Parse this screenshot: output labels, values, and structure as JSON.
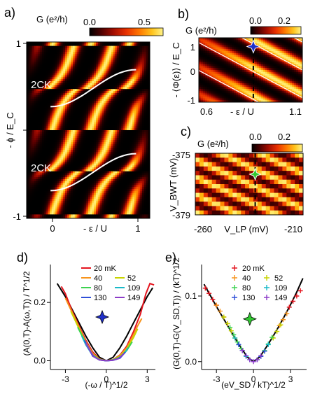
{
  "colors": {
    "cmap": [
      "#000000",
      "#2a0000",
      "#6e0000",
      "#b81000",
      "#ee3a00",
      "#ff7a00",
      "#ffbe10",
      "#fff07a"
    ],
    "series": [
      "#e4141e",
      "#f7941d",
      "#c8d400",
      "#3cd250",
      "#19b9c8",
      "#2f4fd8",
      "#8c3cc8",
      "#e632c8"
    ],
    "star_blue": "#2030c8",
    "star_green": "#32c832"
  },
  "icons": {
    "marker": "four-point-star-icon"
  },
  "chart_data": [
    {
      "panel": "a)",
      "type": "heatmap",
      "colorbar": {
        "label": "G (e²/h)",
        "ticks": [
          "0.0",
          "0.5"
        ],
        "range": [
          0,
          0.7
        ]
      },
      "xlabel": "- ε / U",
      "ylabel": "- ϕ / E_C",
      "xlim": [
        -0.45,
        1.35
      ],
      "ylim": [
        -1.05,
        1.05
      ],
      "xticks": [
        "0",
        "1"
      ],
      "yticks": [
        "1",
        "-1"
      ],
      "annotations": [
        "2CK",
        "2CK"
      ],
      "model": "diagonal bright stripes periodic in phase (period 1), conductance peaks along x = 1/6 + 0.4 y with period 0.55 in -ε/U"
    },
    {
      "panel": "b)",
      "type": "heatmap",
      "colorbar": {
        "label": "G (e²/h)",
        "ticks": [
          "0.0",
          "0.2"
        ],
        "range": [
          0,
          0.3
        ]
      },
      "xlabel": "- ε / U",
      "ylabel": "- ⟨Φ(ε)⟩ / E_C",
      "xlim": [
        0.55,
        1.12
      ],
      "ylim": [
        -1.05,
        1.15
      ],
      "xticks": [
        "0.6",
        "1.1"
      ],
      "yticks": [
        "1",
        "0",
        "-1"
      ],
      "marker": {
        "x": 0.85,
        "y": 0.85,
        "color": "blue"
      },
      "dashed_line_x": 0.85
    },
    {
      "panel": "c)",
      "type": "heatmap",
      "colorbar": {
        "label": "G (e²/h)",
        "ticks": [
          "0.0",
          "0.2"
        ],
        "range": [
          0,
          0.3
        ]
      },
      "xlabel": "V_LP (mV)",
      "ylabel": "V_BWT (mV)",
      "xlim": [
        -262,
        -208
      ],
      "ylim": [
        -379.2,
        -374.8
      ],
      "xticks": [
        "-260",
        "-210"
      ],
      "yticks": [
        "-375",
        "-379"
      ],
      "marker": {
        "x": -232,
        "y": -376.3,
        "color": "green"
      },
      "dashed_line_x": -232
    },
    {
      "panel": "d)",
      "type": "line",
      "xlabel": "(-ω / T)^1/2",
      "ylabel": "(A(0,T)-A(ω,T)) / T^1/2",
      "xlim": [
        -4.1,
        3.6
      ],
      "ylim": [
        -0.03,
        0.33
      ],
      "xticks": [
        "-3",
        "0",
        "3"
      ],
      "yticks": [
        "0.0",
        "0.2"
      ],
      "legend_title": "20 mK",
      "legend_position": "top",
      "legend": [
        "20 mK",
        "40",
        "52",
        "80",
        "109",
        "130",
        "149"
      ],
      "series": [
        {
          "name": "20 mK",
          "x": [
            -3.3,
            -3.0,
            -2.5,
            -2.0,
            -1.5,
            -1.0,
            -0.5,
            0.0,
            0.5,
            1.0,
            1.5,
            2.0,
            2.5,
            2.9,
            3.2,
            3.5
          ],
          "y": [
            0.255,
            0.23,
            0.17,
            0.12,
            0.07,
            0.03,
            0.006,
            0.0,
            0.004,
            0.02,
            0.05,
            0.1,
            0.16,
            0.23,
            0.265,
            0.26
          ]
        },
        {
          "name": "40",
          "x": [
            -3.0,
            -2.5,
            -2.0,
            -1.5,
            -1.0,
            -0.5,
            0.0,
            0.5,
            1.0,
            1.5,
            2.0,
            2.3,
            2.6
          ],
          "y": [
            0.215,
            0.165,
            0.115,
            0.065,
            0.025,
            0.005,
            0.0,
            0.004,
            0.018,
            0.045,
            0.09,
            0.12,
            0.145
          ]
        },
        {
          "name": "52",
          "x": [
            -2.6,
            -2.0,
            -1.5,
            -1.0,
            -0.5,
            0.0,
            0.5,
            1.0,
            1.5,
            2.0,
            2.3
          ],
          "y": [
            0.17,
            0.11,
            0.06,
            0.022,
            0.005,
            0.0,
            0.003,
            0.015,
            0.04,
            0.08,
            0.11
          ]
        },
        {
          "name": "80",
          "x": [
            -2.1,
            -1.5,
            -1.0,
            -0.5,
            0.0,
            0.5,
            1.0,
            1.5,
            1.9
          ],
          "y": [
            0.115,
            0.06,
            0.02,
            0.004,
            0.0,
            0.003,
            0.013,
            0.035,
            0.065
          ]
        },
        {
          "name": "109",
          "x": [
            -1.8,
            -1.5,
            -1.0,
            -0.5,
            0.0,
            0.5,
            1.0,
            1.4,
            1.6
          ],
          "y": [
            0.085,
            0.055,
            0.018,
            0.003,
            0.0,
            0.002,
            0.01,
            0.03,
            0.045
          ]
        },
        {
          "name": "130",
          "x": [
            -1.6,
            -1.3,
            -1.0,
            -0.5,
            0.0,
            0.5,
            1.0,
            1.4
          ],
          "y": [
            0.07,
            0.045,
            0.016,
            0.003,
            0.0,
            0.002,
            0.009,
            0.03
          ]
        },
        {
          "name": "149",
          "x": [
            -1.5,
            -1.2,
            -0.9,
            -0.5,
            0.0,
            0.5,
            0.9,
            1.3
          ],
          "y": [
            0.06,
            0.035,
            0.014,
            0.003,
            0.0,
            0.002,
            0.008,
            0.025
          ]
        }
      ],
      "reference_line": {
        "x": [
          -3.6,
          -3.0,
          -2.5,
          -2.0,
          -1.5,
          -1.0,
          -0.5,
          0.0,
          0.5,
          1.0,
          1.5,
          2.0,
          2.5,
          3.0,
          3.4
        ],
        "y": [
          0.265,
          0.22,
          0.175,
          0.13,
          0.085,
          0.045,
          0.012,
          0.0,
          0.012,
          0.045,
          0.085,
          0.13,
          0.175,
          0.22,
          0.25
        ]
      },
      "marker": {
        "x": -0.3,
        "y": 0.15,
        "color": "blue"
      }
    },
    {
      "panel": "e)",
      "type": "scatter",
      "xlabel": "(eV_SD / kT)^1/2",
      "ylabel": "(G(0,T)-G(V_SD,T)) / (kT)^1/2",
      "xlim": [
        -4.2,
        4.3
      ],
      "ylim": [
        -0.012,
        0.148
      ],
      "xticks": [
        "-3",
        "0",
        "3"
      ],
      "yticks": [
        "0.0",
        "0.1"
      ],
      "legend_title": "20 mK",
      "legend_position": "top",
      "legend": [
        "20 mK",
        "40",
        "52",
        "80",
        "109",
        "130",
        "149"
      ],
      "series": [
        {
          "name": "20 mK",
          "x": [
            -3.9,
            -3.6,
            -3.3,
            -3.0,
            2.9,
            3.2,
            3.5,
            3.8
          ],
          "y": [
            0.112,
            0.104,
            0.095,
            0.086,
            0.083,
            0.092,
            0.1,
            0.108
          ]
        },
        {
          "name": "40",
          "x": [
            -3.0,
            -2.7,
            -2.4,
            -2.1,
            2.1,
            2.4,
            2.7
          ],
          "y": [
            0.086,
            0.077,
            0.068,
            0.058,
            0.055,
            0.064,
            0.073
          ]
        },
        {
          "name": "52",
          "x": [
            -2.4,
            -2.1,
            -1.8,
            -1.5,
            1.6,
            1.9,
            2.2
          ],
          "y": [
            0.068,
            0.058,
            0.047,
            0.036,
            0.036,
            0.046,
            0.056
          ]
        },
        {
          "name": "80",
          "x": [
            -1.9,
            -1.6,
            -1.3,
            -1.0,
            0.9,
            1.2,
            1.5
          ],
          "y": [
            0.052,
            0.041,
            0.03,
            0.02,
            0.017,
            0.027,
            0.037
          ]
        },
        {
          "name": "109",
          "x": [
            -1.5,
            -1.2,
            -0.9,
            -0.6,
            0.6,
            0.9,
            1.2
          ],
          "y": [
            0.036,
            0.026,
            0.017,
            0.008,
            0.008,
            0.016,
            0.026
          ]
        },
        {
          "name": "130",
          "x": [
            -1.2,
            -0.9,
            -0.6,
            -0.3,
            0.3,
            0.6,
            0.9
          ],
          "y": [
            0.026,
            0.017,
            0.009,
            0.003,
            0.003,
            0.008,
            0.016
          ]
        },
        {
          "name": "149",
          "x": [
            -0.9,
            -0.6,
            -0.3,
            0.0,
            0.3,
            0.6
          ],
          "y": [
            0.017,
            0.009,
            0.003,
            0.0,
            0.003,
            0.009
          ]
        }
      ],
      "reference_line": {
        "x": [
          -4.0,
          -3.5,
          -3.0,
          -2.5,
          -2.0,
          -1.5,
          -1.0,
          -0.5,
          0.0,
          0.5,
          1.0,
          1.5,
          2.0,
          2.5,
          3.0,
          3.5,
          4.0
        ],
        "y": [
          0.118,
          0.101,
          0.084,
          0.068,
          0.052,
          0.036,
          0.021,
          0.007,
          0.0,
          0.007,
          0.021,
          0.036,
          0.052,
          0.069,
          0.087,
          0.106,
          0.127
        ]
      },
      "marker": {
        "x": -0.3,
        "y": 0.065,
        "color": "green"
      }
    }
  ]
}
